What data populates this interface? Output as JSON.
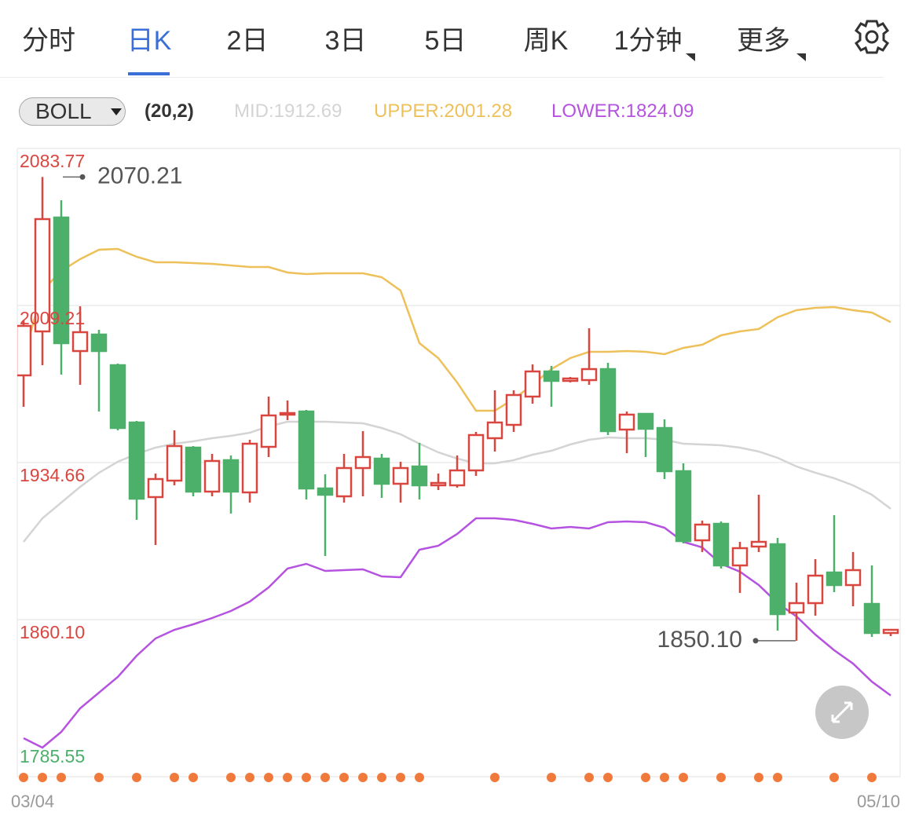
{
  "tabs": [
    "分时",
    "日K",
    "2日",
    "3日",
    "5日",
    "周K",
    "1分钟",
    "更多"
  ],
  "active_tab": 1,
  "indicator": {
    "name": "BOLL",
    "params": "(20,2)"
  },
  "chart_data": {
    "type": "candlestick",
    "categories": [
      "03/04",
      null,
      null,
      null,
      null,
      null,
      null,
      null,
      null,
      null,
      null,
      null,
      null,
      null,
      null,
      null,
      null,
      null,
      null,
      null,
      null,
      null,
      null,
      null,
      null,
      null,
      null,
      null,
      null,
      null,
      null,
      null,
      null,
      null,
      null,
      null,
      null,
      null,
      null,
      null,
      null,
      null,
      null,
      null,
      null,
      null,
      "05/10"
    ],
    "ylim": [
      1785.55,
      2083.77
    ],
    "yticks": [
      2083.77,
      2009.21,
      1934.66,
      {
        "value": 1860.1,
        "label": "1860.10"
      },
      1785.55
    ],
    "grid": true,
    "up_color": "#d9463f",
    "down_color": "#4caf6a",
    "candles": {
      "open": [
        1976.04,
        1996.91,
        2050.97,
        1987.59,
        1995.42,
        1980.88,
        1953.67,
        1918.26,
        1926.08,
        1941.74,
        1920.87,
        1935.78,
        1920.49,
        1942.11,
        1957.4,
        1958.89,
        1922.36,
        1918.63,
        1932.05,
        1936.52,
        1924.59,
        1932.79,
        1923.85,
        1923.85,
        1930.93,
        1946.21,
        1952.55,
        1965.97,
        1977.9,
        1973.43,
        1973.8,
        1979.02,
        1950.31,
        1957.77,
        1951.06,
        1930.56,
        1897.75,
        1905.58,
        1885.82,
        1894.77,
        1895.89,
        1863.46,
        1867.93,
        1882.47,
        1876.5,
        1867.56,
        1853.76
      ],
      "high": [
        2002.13,
        2070.21,
        2059.17,
        2008.84,
        1997.66,
        1981.63,
        1954.42,
        1929.44,
        1949.94,
        1942.49,
        1938.76,
        1938.01,
        1945.47,
        1965.97,
        1964.11,
        1959.63,
        1929.07,
        1938.76,
        1949.57,
        1938.76,
        1935.03,
        1943.98,
        1929.44,
        1938.01,
        1949.2,
        1968.95,
        1968.95,
        1981.26,
        1980.51,
        1975.29,
        1998.4,
        1982.0,
        1958.89,
        1957.77,
        1955.16,
        1934.29,
        1907.07,
        1906.7,
        1897.01,
        1919.37,
        1898.87,
        1877.62,
        1888.81,
        1909.68,
        1892.16,
        1885.82,
        1855.63
      ],
      "low": [
        1961.13,
        1980.88,
        1976.41,
        1971.56,
        1958.89,
        1949.94,
        1907.45,
        1895.52,
        1923.85,
        1918.63,
        1918.63,
        1910.43,
        1915.65,
        1937.27,
        1954.79,
        1917.14,
        1890.3,
        1915.65,
        1918.63,
        1917.88,
        1915.65,
        1917.14,
        1921.61,
        1922.73,
        1928.32,
        1939.88,
        1949.2,
        1962.62,
        1961.13,
        1972.68,
        1971.56,
        1947.71,
        1939.13,
        1937.27,
        1926.83,
        1896.26,
        1892.16,
        1884.33,
        1872.77,
        1892.16,
        1854.88,
        1850.1,
        1861.97,
        1873.15,
        1866.44,
        1851.9,
        1852.27
      ],
      "close": [
        1999.52,
        2050.22,
        1991.32,
        1996.54,
        1987.59,
        1951.06,
        1917.51,
        1926.83,
        1942.49,
        1920.87,
        1935.4,
        1920.87,
        1943.6,
        1957.02,
        1958.14,
        1922.36,
        1919.37,
        1932.05,
        1937.27,
        1924.59,
        1932.05,
        1923.85,
        1924.97,
        1930.93,
        1947.71,
        1953.67,
        1966.72,
        1977.9,
        1973.43,
        1974.55,
        1979.02,
        1949.57,
        1957.4,
        1950.69,
        1930.56,
        1897.38,
        1905.21,
        1885.82,
        1894.02,
        1897.01,
        1862.71,
        1867.93,
        1880.98,
        1876.5,
        1883.59,
        1853.76,
        1855.26
      ]
    },
    "lines": [
      {
        "label": "MID:1912.69",
        "color": "#d4d4d4",
        "values": [
          1897.01,
          1908.2,
          1915.65,
          1923.11,
          1929.82,
          1935.04,
          1938.76,
          1941.75,
          1943.61,
          1944.73,
          1946.22,
          1947.34,
          1948.83,
          1951.81,
          1954.05,
          1954.05,
          1954.05,
          1953.67,
          1953.3,
          1951.06,
          1948.08,
          1943.61,
          1939.51,
          1936.53,
          1934.29,
          1934.29,
          1935.78,
          1938.39,
          1940.25,
          1943.23,
          1945.47,
          1946.59,
          1946.22,
          1946.22,
          1945.47,
          1943.61,
          1943.23,
          1942.86,
          1941.75,
          1939.88,
          1936.9,
          1932.8,
          1929.82,
          1927.21,
          1923.85,
          1919.38,
          1912.69
        ]
      },
      {
        "label": "UPPER:2001.28",
        "color": "#eec05a",
        "values": [
          1984.62,
          2016.3,
          2025.62,
          2031.21,
          2035.69,
          2036.06,
          2032.33,
          2029.72,
          2029.72,
          2029.35,
          2028.98,
          2028.23,
          2027.48,
          2027.48,
          2024.88,
          2024.13,
          2024.5,
          2024.5,
          2024.5,
          2022.64,
          2016.3,
          1991.33,
          1984.24,
          1972.69,
          1959.27,
          1959.27,
          1964.86,
          1971.57,
          1979.02,
          1984.24,
          1987.22,
          1987.22,
          1987.6,
          1987.22,
          1986.11,
          1989.09,
          1990.58,
          1995.05,
          1996.92,
          1998.04,
          2003.63,
          2006.98,
          2008.1,
          2008.47,
          2006.98,
          2005.86,
          2001.28
        ]
      },
      {
        "label": "LOWER:1824.09",
        "color": "#b553e0",
        "values": [
          1803.82,
          1799.34,
          1806.8,
          1817.98,
          1825.44,
          1832.89,
          1842.96,
          1851.16,
          1855.26,
          1857.87,
          1860.85,
          1864.21,
          1868.68,
          1875.39,
          1884.34,
          1886.57,
          1883.22,
          1883.59,
          1883.96,
          1880.61,
          1880.24,
          1893.28,
          1895.15,
          1900.74,
          1908.2,
          1908.2,
          1907.45,
          1905.59,
          1903.35,
          1904.09,
          1903.35,
          1906.33,
          1906.7,
          1906.33,
          1903.72,
          1897.01,
          1894.4,
          1886.57,
          1882.85,
          1876.51,
          1867.93,
          1861.6,
          1853.02,
          1845.57,
          1839.23,
          1830.66,
          1824.09
        ]
      }
    ],
    "annotations": [
      {
        "label": "2070.21",
        "value": 2070.21
      },
      {
        "label": "1850.10",
        "value": 1850.1
      }
    ]
  }
}
